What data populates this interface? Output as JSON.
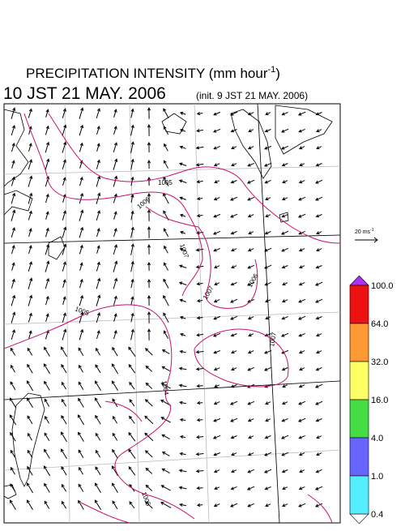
{
  "header": {
    "title": "PRECIPITATION INTENSITY (mm hour",
    "title_exponent": "-1",
    "title_close": ")",
    "valid_time": "10 JST 21 MAY. 2006",
    "init_time": "(init. 9 JST 21 MAY. 2006)"
  },
  "reference_vector": {
    "label": "20 ms",
    "exponent": "-1"
  },
  "colorbar": {
    "levels": [
      "100.0",
      "64.0",
      "32.0",
      "16.0",
      "4.0",
      "1.0",
      "0.4"
    ]
  },
  "contour_labels": [
    "1005",
    "1006",
    "1007",
    "1005",
    "1007",
    "1006",
    "1007",
    "1004",
    "1005"
  ]
}
